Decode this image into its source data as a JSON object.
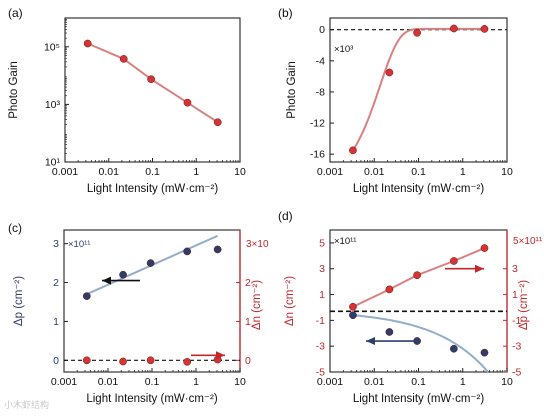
{
  "figure": {
    "watermark": "小木虾结构"
  },
  "chart_data": [
    {
      "panel_label": "(a)",
      "type": "scatter",
      "xlabel": "Light Intensity (mW·cm⁻²)",
      "ylabel": "Photo Gain",
      "xscale": "log",
      "yscale": "log",
      "xlim": [
        0.001,
        10
      ],
      "ylim": [
        10,
        1000000
      ],
      "x_ticks": [
        0.001,
        0.01,
        0.1,
        1,
        10
      ],
      "x_tick_labels": [
        "0.001",
        "0.01",
        "0.1",
        "1",
        "10"
      ],
      "y_ticks": [
        10,
        1000,
        100000
      ],
      "y_tick_labels": [
        "10¹",
        "10³",
        "10⁵"
      ],
      "grid": false,
      "series": [
        {
          "color": "#d43434",
          "line_color": "#d98080",
          "x": [
            0.0033,
            0.022,
            0.093,
            0.63,
            3.1
          ],
          "y": [
            130000,
            38000,
            7500,
            1150,
            240
          ]
        }
      ]
    },
    {
      "panel_label": "(b)",
      "type": "scatter",
      "xlabel": "Light Intensity (mW·cm⁻²)",
      "ylabel": "Photo Gain",
      "scale_note": "×10³",
      "xscale": "log",
      "xlim": [
        0.001,
        10
      ],
      "ylim": [
        -17,
        1.5
      ],
      "x_ticks": [
        0.001,
        0.01,
        0.1,
        1,
        10
      ],
      "x_tick_labels": [
        "0.001",
        "0.01",
        "0.1",
        "1",
        "10"
      ],
      "y_ticks": [
        0,
        -4,
        -8,
        -12,
        -16
      ],
      "y_tick_labels": [
        "0",
        "-4",
        "-8",
        "-12",
        "-16"
      ],
      "zero_line": true,
      "grid": false,
      "series": [
        {
          "color": "#d43434",
          "line_color": "#d98080",
          "x": [
            0.0033,
            0.022,
            0.093,
            0.63,
            3.1
          ],
          "y": [
            -15.5,
            -5.5,
            -0.4,
            0.15,
            0.1
          ]
        }
      ]
    },
    {
      "panel_label": "(c)",
      "type": "scatter",
      "xlabel": "Light Intensity (mW·cm⁻²)",
      "ylabel_left": "Δp (cm⁻²)",
      "ylabel_right": "Δn (cm⁻²)",
      "scale_note_left": "×10¹¹",
      "scale_note_right": "3×10",
      "xscale": "log",
      "xlim": [
        0.001,
        10
      ],
      "ylim_left": [
        -0.3,
        3.35
      ],
      "ylim_right": [
        -0.3,
        3.35
      ],
      "x_ticks": [
        0.001,
        0.01,
        0.1,
        1,
        10
      ],
      "x_tick_labels": [
        "0.001",
        "0.01",
        "0.1",
        "1",
        "10"
      ],
      "y_ticks_left": [
        0,
        1,
        2,
        3
      ],
      "y_tick_labels_left": [
        "0",
        "1",
        "2",
        "3"
      ],
      "y_ticks_right": [
        0,
        1,
        2
      ],
      "y_tick_labels_right": [
        "0",
        "1",
        "2"
      ],
      "zero_line": true,
      "grid": false,
      "series": [
        {
          "axis": "left",
          "color": "#2c3e6a",
          "line_color": "#92aecb",
          "x": [
            0.0033,
            0.022,
            0.093,
            0.63,
            3.1
          ],
          "y": [
            1.65,
            2.2,
            2.5,
            2.8,
            2.85
          ]
        },
        {
          "axis": "right",
          "color": "#d43434",
          "x": [
            0.0033,
            0.022,
            0.093,
            0.63,
            3.1
          ],
          "y": [
            0.0,
            -0.03,
            0.0,
            -0.04,
            0.02
          ]
        }
      ]
    },
    {
      "panel_label": "(d)",
      "type": "scatter",
      "xlabel": "Light Intensity (mW·cm⁻²)",
      "ylabel_left": "Δn (cm⁻²)",
      "ylabel_right": "Δp (cm⁻²)",
      "scale_note_left": "×10¹¹",
      "scale_note_right": "5×10¹¹",
      "xscale": "log",
      "xlim": [
        0.001,
        10
      ],
      "ylim_left": [
        -5,
        6
      ],
      "ylim_right": [
        -5,
        6
      ],
      "x_ticks": [
        0.001,
        0.01,
        0.1,
        1,
        10
      ],
      "x_tick_labels": [
        "0.001",
        "0.01",
        "0.1",
        "1",
        "10"
      ],
      "y_ticks_left": [
        5,
        3,
        1,
        -1,
        -3,
        -5
      ],
      "y_tick_labels_left": [
        "5",
        "3",
        "1",
        "-1",
        "-3",
        "-5"
      ],
      "y_ticks_right": [
        3,
        1,
        -1,
        -3,
        -5
      ],
      "y_tick_labels_right": [
        "3",
        "1",
        "-1",
        "-3",
        "-5"
      ],
      "zero_line_at": -0.3,
      "grid": false,
      "series": [
        {
          "axis": "left",
          "color": "#d43434",
          "line_color": "#d98080",
          "x": [
            0.0033,
            0.022,
            0.093,
            0.63,
            3.1
          ],
          "y": [
            0.05,
            1.4,
            2.5,
            3.6,
            4.6
          ]
        },
        {
          "axis": "right",
          "color": "#2c3e6a",
          "line_color": "#92aecb",
          "x": [
            0.0033,
            0.022,
            0.093,
            0.63,
            3.1
          ],
          "y": [
            -0.6,
            -1.9,
            -2.6,
            -3.2,
            -3.5
          ]
        }
      ]
    }
  ]
}
